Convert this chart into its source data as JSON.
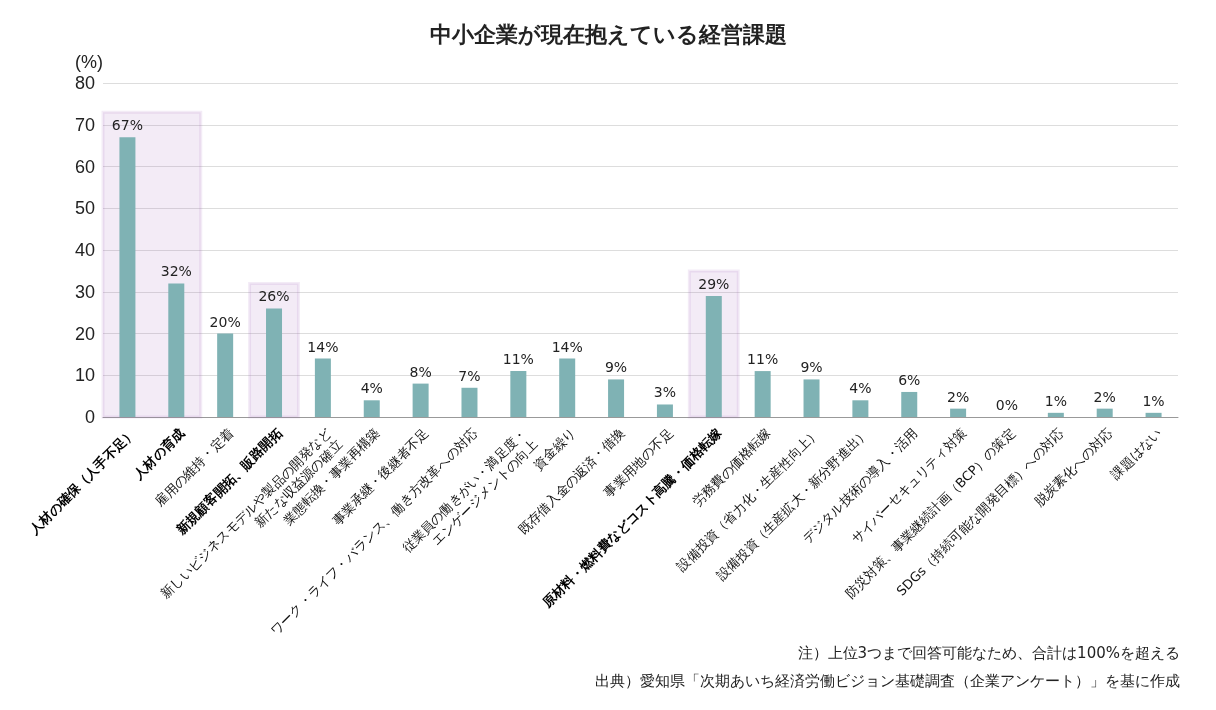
{
  "chart_data": {
    "type": "bar",
    "title": "中小企業が現在抱えている経営課題",
    "ylabel": "(%)",
    "categories": [
      "人材の確保（人手不足）",
      "人材の育成",
      "雇用の維持・定着",
      "新規顧客開拓、販路開拓",
      "新しいビジネスモデルや製品の開発など\n新たな収益源の確立",
      "業態転換・事業再構築",
      "事業承継・後継者不足",
      "ワーク・ライフ・バランス、働き方改革への対応",
      "従業員の働きがい・満足度・\nエンゲージメントの向上",
      "資金繰り",
      "既存借入金の返済・借換",
      "事業用地の不足",
      "原材料・燃料費などコスト高騰・価格転嫁",
      "労務費の価格転嫁",
      "設備投資（省力化・生産性向上）",
      "設備投資（生産拡大・新分野進出）",
      "デジタル技術の導入・活用",
      "サイバーセキュリティ対策",
      "防災対策、事業継続計画（BCP）の策定",
      "SDGs（持続可能な開発目標）への対応",
      "脱炭素化への対応",
      "課題はない"
    ],
    "values": [
      67,
      32,
      20,
      26,
      14,
      4,
      8,
      7,
      11,
      14,
      9,
      3,
      29,
      11,
      9,
      4,
      6,
      2,
      0,
      1,
      2,
      1
    ],
    "value_labels": [
      "67%",
      "32%",
      "20%",
      "26%",
      "14%",
      "4%",
      "8%",
      "7%",
      "11%",
      "14%",
      "9%",
      "3%",
      "29%",
      "11%",
      "9%",
      "4%",
      "6%",
      "2%",
      "0%",
      "1%",
      "2%",
      "1%"
    ],
    "color": "#7fb2b4",
    "ylim": [
      0,
      80
    ],
    "yticks": [
      0,
      10,
      20,
      30,
      40,
      50,
      60,
      70,
      80
    ],
    "grid": "y",
    "bands": [
      {
        "axis": "x",
        "from": "人材の確保（人手不足）",
        "to": "人材の育成",
        "color": "#9b59b6"
      },
      {
        "axis": "x",
        "from": "新規顧客開拓、販路開拓",
        "to": "新規顧客開拓、販路開拓",
        "color": "#9b59b6"
      },
      {
        "axis": "x",
        "from": "原材料・燃料費などコスト高騰・価格転嫁",
        "to": "原材料・燃料費などコスト高騰・価格転嫁",
        "color": "#9b59b6"
      }
    ],
    "annotations": [
      "注）上位3つまで回答可能なため、合計は100%を超える",
      "出典）愛知県「次期あいち経済労働ビジョン基礎調査（企業アンケート）」を基に作成"
    ]
  }
}
